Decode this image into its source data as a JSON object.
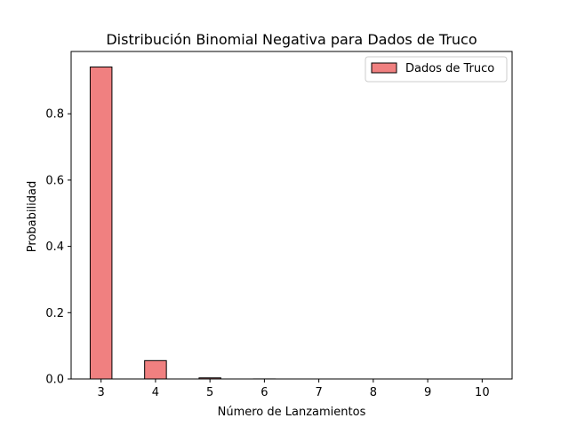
{
  "chart_data": {
    "type": "bar",
    "title": "Distribución Binomial Negativa para Dados de Truco",
    "xlabel": "Número de Lanzamientos",
    "ylabel": "Probabilidad",
    "categories": [
      3,
      4,
      5,
      6,
      7,
      8,
      9,
      10
    ],
    "series": [
      {
        "name": "Dados de Truco",
        "values": [
          0.9412,
          0.0554,
          0.0033,
          0.0002,
          1e-05,
          1e-06,
          1e-07,
          1e-08
        ]
      }
    ],
    "ylim": [
      0,
      0.988
    ],
    "yticks": [
      "0.0",
      "0.2",
      "0.4",
      "0.6",
      "0.8"
    ],
    "ytick_values": [
      0,
      0.2,
      0.4,
      0.6,
      0.8
    ],
    "xticks": [
      "3",
      "4",
      "5",
      "6",
      "7",
      "8",
      "9",
      "10"
    ],
    "grid": false,
    "legend": "top-right",
    "colors": {
      "bar_fill": "#f08080",
      "bar_edge": "#000000"
    }
  }
}
